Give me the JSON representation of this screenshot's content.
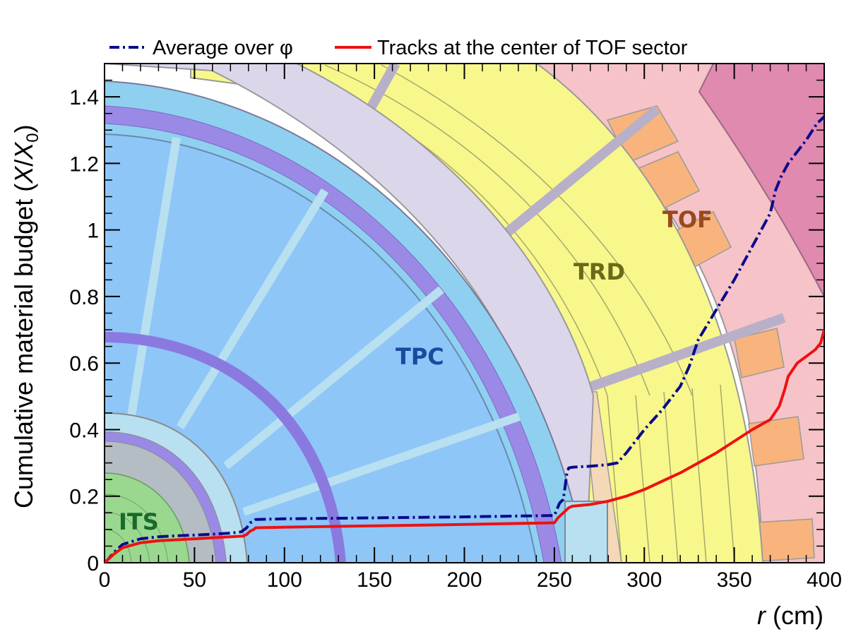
{
  "chart_data": {
    "type": "line",
    "xlabel_italic": "r",
    "xlabel_unit": " (cm)",
    "ylabel_prefix": "Cumulative material budget (",
    "ylabel_X": "X",
    "ylabel_slash": "/",
    "ylabel_X0": "X",
    "ylabel_sub": "0",
    "ylabel_suffix": ")",
    "xlim": [
      0,
      400
    ],
    "ylim": [
      0,
      1.5
    ],
    "x_ticks": [
      0,
      50,
      100,
      150,
      200,
      250,
      300,
      350,
      400
    ],
    "x_tick_labels": [
      "0",
      "50",
      "100",
      "150",
      "200",
      "250",
      "300",
      "350",
      "400"
    ],
    "y_ticks": [
      0,
      0.2,
      0.4,
      0.6,
      0.8,
      1.0,
      1.2,
      1.4
    ],
    "y_tick_labels": [
      "0",
      "0.2",
      "0.4",
      "0.6",
      "0.8",
      "1",
      "1.2",
      "1.4"
    ],
    "legend_placement": "top, above plot",
    "background_labels": {
      "its": "ITS",
      "tpc": "TPC",
      "trd": "TRD",
      "tof": "TOF"
    },
    "series": [
      {
        "name": "Average over φ",
        "color": "#0a0a8c",
        "style": "dash-dot",
        "x": [
          0,
          2,
          5,
          10,
          20,
          30,
          40,
          50,
          60,
          70,
          76,
          79,
          81,
          83,
          84,
          100,
          150,
          200,
          250,
          253,
          255,
          256,
          257,
          258,
          260,
          270,
          280,
          285,
          290,
          300,
          310,
          320,
          325,
          330,
          340,
          350,
          360,
          370,
          373,
          376,
          380,
          390,
          396,
          400
        ],
        "values": [
          0,
          0.01,
          0.03,
          0.055,
          0.072,
          0.078,
          0.081,
          0.083,
          0.086,
          0.089,
          0.093,
          0.105,
          0.12,
          0.125,
          0.13,
          0.132,
          0.135,
          0.138,
          0.142,
          0.18,
          0.19,
          0.23,
          0.27,
          0.285,
          0.287,
          0.29,
          0.295,
          0.3,
          0.33,
          0.4,
          0.46,
          0.53,
          0.59,
          0.67,
          0.76,
          0.85,
          0.95,
          1.05,
          1.12,
          1.16,
          1.2,
          1.27,
          1.32,
          1.34
        ]
      },
      {
        "name": "Tracks at the center of TOF sector",
        "color": "#ee1111",
        "style": "solid",
        "x": [
          0,
          2,
          5,
          10,
          20,
          30,
          40,
          50,
          60,
          70,
          77,
          79,
          81,
          83,
          84,
          100,
          150,
          200,
          250,
          252,
          255,
          258,
          260,
          270,
          280,
          290,
          300,
          310,
          320,
          330,
          340,
          350,
          360,
          370,
          375,
          378,
          380,
          385,
          390,
          395,
          398,
          400
        ],
        "values": [
          0,
          0.01,
          0.025,
          0.045,
          0.06,
          0.066,
          0.069,
          0.072,
          0.075,
          0.078,
          0.08,
          0.085,
          0.095,
          0.1,
          0.105,
          0.107,
          0.111,
          0.115,
          0.12,
          0.135,
          0.15,
          0.165,
          0.17,
          0.175,
          0.185,
          0.2,
          0.22,
          0.245,
          0.27,
          0.3,
          0.33,
          0.365,
          0.4,
          0.43,
          0.47,
          0.52,
          0.56,
          0.6,
          0.62,
          0.64,
          0.66,
          0.7
        ]
      }
    ]
  }
}
